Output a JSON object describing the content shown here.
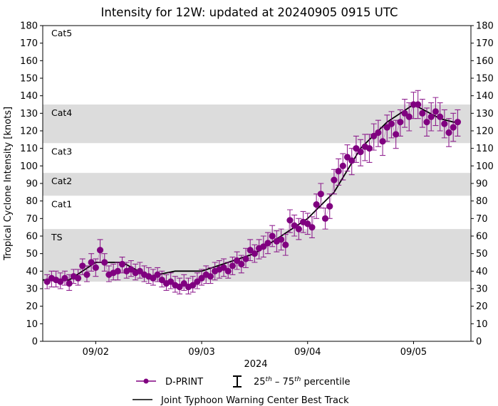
{
  "chart_data": {
    "type": "scatter",
    "title": "Intensity for 12W: updated at 20240905 0915 UTC",
    "xlabel": "2024",
    "ylabel": "Tropical Cyclone Intensity [knots]",
    "xlim": [
      "2024-09-01T12:00",
      "2024-09-05T13:00"
    ],
    "ylim": [
      0,
      180
    ],
    "yticks": [
      0,
      10,
      20,
      30,
      40,
      50,
      60,
      70,
      80,
      90,
      100,
      110,
      120,
      130,
      140,
      150,
      160,
      170,
      180
    ],
    "xticks": [
      {
        "t": "2024-09-02T00:00",
        "label": "09/02"
      },
      {
        "t": "2024-09-03T00:00",
        "label": "09/03"
      },
      {
        "t": "2024-09-04T00:00",
        "label": "09/04"
      },
      {
        "t": "2024-09-05T00:00",
        "label": "09/05"
      }
    ],
    "grid": false,
    "legend_placement": "bottom-center",
    "categories_bands": [
      {
        "label": "TS",
        "low": 34,
        "high": 64,
        "shaded": true
      },
      {
        "label": "Cat1",
        "low": 64,
        "high": 83,
        "shaded": false
      },
      {
        "label": "Cat2",
        "low": 83,
        "high": 96,
        "shaded": true
      },
      {
        "label": "Cat3",
        "low": 96,
        "high": 113,
        "shaded": false
      },
      {
        "label": "Cat4",
        "low": 113,
        "high": 135,
        "shaded": true
      },
      {
        "label": "Cat5",
        "low": 135,
        "high": 180,
        "shaded": false
      }
    ],
    "colors": {
      "dprint": "#800080",
      "best_track": "#000000",
      "band": "#dcdcdc"
    },
    "series": [
      {
        "name": "D-PRINT",
        "point_format": [
          "time",
          "value",
          "p25",
          "p75"
        ],
        "points": [
          [
            "2024-09-01T13:00",
            34,
            30,
            38
          ],
          [
            "2024-09-01T14:00",
            36,
            31,
            40
          ],
          [
            "2024-09-01T15:00",
            35,
            31,
            40
          ],
          [
            "2024-09-01T16:00",
            34,
            30,
            39
          ],
          [
            "2024-09-01T17:00",
            36,
            32,
            40
          ],
          [
            "2024-09-01T18:00",
            33,
            29,
            38
          ],
          [
            "2024-09-01T19:00",
            37,
            33,
            41
          ],
          [
            "2024-09-01T20:00",
            36,
            32,
            41
          ],
          [
            "2024-09-01T21:00",
            43,
            38,
            47
          ],
          [
            "2024-09-01T22:00",
            38,
            34,
            43
          ],
          [
            "2024-09-01T23:00",
            45,
            40,
            50
          ],
          [
            "2024-09-02T00:00",
            42,
            37,
            47
          ],
          [
            "2024-09-02T01:00",
            52,
            45,
            58
          ],
          [
            "2024-09-02T02:00",
            45,
            40,
            50
          ],
          [
            "2024-09-02T03:00",
            38,
            34,
            43
          ],
          [
            "2024-09-02T04:00",
            39,
            35,
            44
          ],
          [
            "2024-09-02T05:00",
            40,
            35,
            45
          ],
          [
            "2024-09-02T06:00",
            44,
            39,
            48
          ],
          [
            "2024-09-02T07:00",
            40,
            36,
            45
          ],
          [
            "2024-09-02T08:00",
            41,
            37,
            46
          ],
          [
            "2024-09-02T09:00",
            39,
            35,
            44
          ],
          [
            "2024-09-02T10:00",
            40,
            36,
            45
          ],
          [
            "2024-09-02T11:00",
            38,
            34,
            43
          ],
          [
            "2024-09-02T12:00",
            37,
            33,
            42
          ],
          [
            "2024-09-02T13:00",
            36,
            32,
            41
          ],
          [
            "2024-09-02T14:00",
            38,
            34,
            42
          ],
          [
            "2024-09-02T15:00",
            35,
            31,
            40
          ],
          [
            "2024-09-02T16:00",
            33,
            29,
            38
          ],
          [
            "2024-09-02T17:00",
            34,
            30,
            39
          ],
          [
            "2024-09-02T18:00",
            32,
            28,
            37
          ],
          [
            "2024-09-02T19:00",
            31,
            27,
            36
          ],
          [
            "2024-09-02T20:00",
            33,
            29,
            38
          ],
          [
            "2024-09-02T21:00",
            31,
            27,
            36
          ],
          [
            "2024-09-02T22:00",
            32,
            28,
            37
          ],
          [
            "2024-09-02T23:00",
            34,
            30,
            39
          ],
          [
            "2024-09-03T00:00",
            36,
            32,
            41
          ],
          [
            "2024-09-03T01:00",
            38,
            33,
            43
          ],
          [
            "2024-09-03T02:00",
            37,
            33,
            42
          ],
          [
            "2024-09-03T03:00",
            40,
            35,
            45
          ],
          [
            "2024-09-03T04:00",
            41,
            36,
            46
          ],
          [
            "2024-09-03T05:00",
            42,
            37,
            47
          ],
          [
            "2024-09-03T06:00",
            40,
            36,
            45
          ],
          [
            "2024-09-03T07:00",
            43,
            38,
            48
          ],
          [
            "2024-09-03T08:00",
            46,
            41,
            51
          ],
          [
            "2024-09-03T09:00",
            44,
            39,
            49
          ],
          [
            "2024-09-03T10:00",
            47,
            42,
            53
          ],
          [
            "2024-09-03T11:00",
            52,
            46,
            58
          ],
          [
            "2024-09-03T12:00",
            50,
            45,
            55
          ],
          [
            "2024-09-03T13:00",
            53,
            47,
            58
          ],
          [
            "2024-09-03T14:00",
            54,
            48,
            60
          ],
          [
            "2024-09-03T15:00",
            56,
            50,
            62
          ],
          [
            "2024-09-03T16:00",
            60,
            54,
            66
          ],
          [
            "2024-09-03T17:00",
            57,
            51,
            63
          ],
          [
            "2024-09-03T18:00",
            58,
            52,
            64
          ],
          [
            "2024-09-03T19:00",
            55,
            49,
            61
          ],
          [
            "2024-09-03T20:00",
            69,
            62,
            75
          ],
          [
            "2024-09-03T21:00",
            66,
            60,
            72
          ],
          [
            "2024-09-03T22:00",
            64,
            58,
            70
          ],
          [
            "2024-09-03T23:00",
            68,
            62,
            74
          ],
          [
            "2024-09-04T00:00",
            67,
            61,
            73
          ],
          [
            "2024-09-04T01:00",
            65,
            59,
            71
          ],
          [
            "2024-09-04T02:00",
            78,
            70,
            84
          ],
          [
            "2024-09-04T03:00",
            84,
            76,
            90
          ],
          [
            "2024-09-04T04:00",
            70,
            64,
            76
          ],
          [
            "2024-09-04T05:00",
            77,
            70,
            84
          ],
          [
            "2024-09-04T06:00",
            92,
            84,
            98
          ],
          [
            "2024-09-04T07:00",
            97,
            89,
            104
          ],
          [
            "2024-09-04T08:00",
            100,
            92,
            107
          ],
          [
            "2024-09-04T09:00",
            105,
            97,
            112
          ],
          [
            "2024-09-04T10:00",
            103,
            95,
            110
          ],
          [
            "2024-09-04T11:00",
            110,
            102,
            117
          ],
          [
            "2024-09-04T12:00",
            108,
            100,
            115
          ],
          [
            "2024-09-04T13:00",
            111,
            103,
            118
          ],
          [
            "2024-09-04T14:00",
            110,
            102,
            118
          ],
          [
            "2024-09-04T15:00",
            117,
            109,
            124
          ],
          [
            "2024-09-04T16:00",
            119,
            111,
            126
          ],
          [
            "2024-09-04T17:00",
            114,
            106,
            122
          ],
          [
            "2024-09-04T18:00",
            122,
            114,
            129
          ],
          [
            "2024-09-04T19:00",
            124,
            116,
            131
          ],
          [
            "2024-09-04T20:00",
            118,
            110,
            126
          ],
          [
            "2024-09-04T21:00",
            125,
            117,
            132
          ],
          [
            "2024-09-04T22:00",
            130,
            122,
            138
          ],
          [
            "2024-09-04T23:00",
            128,
            120,
            136
          ],
          [
            "2024-09-05T00:00",
            135,
            127,
            142
          ],
          [
            "2024-09-05T01:00",
            135,
            127,
            143
          ],
          [
            "2024-09-05T02:00",
            130,
            122,
            138
          ],
          [
            "2024-09-05T03:00",
            125,
            117,
            133
          ],
          [
            "2024-09-05T04:00",
            128,
            120,
            136
          ],
          [
            "2024-09-05T05:00",
            131,
            123,
            139
          ],
          [
            "2024-09-05T06:00",
            128,
            120,
            136
          ],
          [
            "2024-09-05T07:00",
            124,
            116,
            132
          ],
          [
            "2024-09-05T08:00",
            119,
            111,
            127
          ],
          [
            "2024-09-05T09:00",
            122,
            114,
            130
          ],
          [
            "2024-09-05T10:00",
            125,
            117,
            132
          ]
        ]
      },
      {
        "name": "Joint Typhoon Warning Center Best Track",
        "points": [
          [
            "2024-09-01T12:00",
            35
          ],
          [
            "2024-09-01T18:00",
            35
          ],
          [
            "2024-09-02T00:00",
            45
          ],
          [
            "2024-09-02T06:00",
            45
          ],
          [
            "2024-09-02T12:00",
            37
          ],
          [
            "2024-09-02T18:00",
            40
          ],
          [
            "2024-09-03T00:00",
            40
          ],
          [
            "2024-09-03T06:00",
            45
          ],
          [
            "2024-09-03T12:00",
            50
          ],
          [
            "2024-09-03T18:00",
            60
          ],
          [
            "2024-09-04T00:00",
            70
          ],
          [
            "2024-09-04T06:00",
            85
          ],
          [
            "2024-09-04T12:00",
            110
          ],
          [
            "2024-09-04T18:00",
            125
          ],
          [
            "2024-09-05T00:00",
            135
          ],
          [
            "2024-09-05T06:00",
            127
          ],
          [
            "2024-09-05T09:00",
            125
          ],
          [
            "2024-09-05T10:00",
            125
          ]
        ]
      }
    ],
    "legend": {
      "dprint": "D-PRINT",
      "pct_a": "25",
      "pct_sup1": "th",
      "pct_b": " – 75",
      "pct_sup2": "th",
      "pct_c": " percentile",
      "best_track": "Joint Typhoon Warning Center Best Track"
    }
  }
}
